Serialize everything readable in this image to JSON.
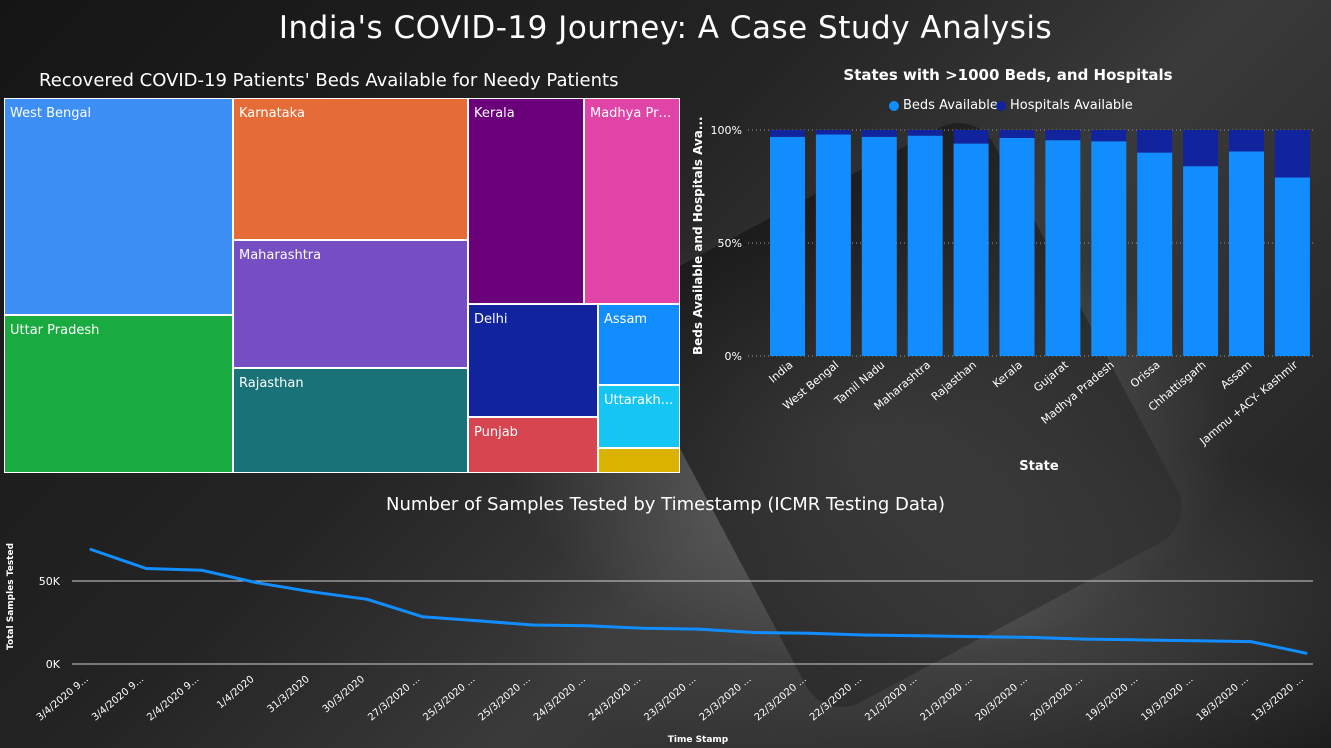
{
  "page": {
    "title": "India's COVID-19 Journey: A Case Study Analysis"
  },
  "treemap": {
    "title": "Recovered COVID-19 Patients' Beds Available for Needy Patients",
    "tiles": [
      {
        "label": "West Bengal",
        "color": "#3D8FF5"
      },
      {
        "label": "Uttar Pradesh",
        "color": "#1AAB40"
      },
      {
        "label": "Karnataka",
        "color": "#E66C37"
      },
      {
        "label": "Maharashtra",
        "color": "#744EC2"
      },
      {
        "label": "Rajasthan",
        "color": "#197278"
      },
      {
        "label": "Kerala",
        "color": "#6B007B"
      },
      {
        "label": "Madhya Pra...",
        "color": "#E044A7"
      },
      {
        "label": "Delhi",
        "color": "#12239E"
      },
      {
        "label": "Punjab",
        "color": "#D64550"
      },
      {
        "label": "Assam",
        "color": "#118DFF"
      },
      {
        "label": "Uttarakh...",
        "color": "#15C6F4"
      },
      {
        "label": "",
        "color": "#D9B300"
      }
    ]
  },
  "chart_data": [
    {
      "type": "bar",
      "stacked_percent": true,
      "title": "States with >1000 Beds, and Hospitals",
      "xlabel": "State",
      "ylabel": "Beds Available and Hospitals Ava...",
      "yticks": [
        "0%",
        "50%",
        "100%"
      ],
      "ylim": [
        0,
        100
      ],
      "legend_position": "top",
      "categories": [
        "India",
        "West Bengal",
        "Tamil Nadu",
        "Maharashtra",
        "Rajasthan",
        "Kerala",
        "Gujarat",
        "Madhya Pradesh",
        "Orissa",
        "Chhattisgarh",
        "Assam",
        "Jammu +ACY- Kashmir"
      ],
      "series": [
        {
          "name": "Beds Available",
          "color": "#118DFF",
          "values": [
            97,
            98,
            97,
            97.5,
            94,
            96.5,
            95.5,
            95,
            90,
            84,
            90.5,
            79
          ]
        },
        {
          "name": "Hospitals Available",
          "color": "#12239E",
          "values": [
            3,
            2,
            3,
            2.5,
            6,
            3.5,
            4.5,
            5,
            10,
            16,
            9.5,
            21
          ]
        }
      ]
    },
    {
      "type": "line",
      "title": "Number of Samples Tested by Timestamp (ICMR Testing Data)",
      "xlabel": "Time Stamp",
      "ylabel": "Total Samples Tested",
      "yticks": [
        "0K",
        "50K"
      ],
      "ylim": [
        0,
        80000
      ],
      "grid": true,
      "color": "#118DFF",
      "categories": [
        "3/4/2020 9...",
        "3/4/2020 9...",
        "2/4/2020 9...",
        "1/4/2020",
        "31/3/2020",
        "30/3/2020",
        "27/3/2020 ...",
        "25/3/2020 ...",
        "25/3/2020 ...",
        "24/3/2020 ...",
        "24/3/2020 ...",
        "23/3/2020 ...",
        "23/3/2020 ...",
        "22/3/2020 ...",
        "22/3/2020 ...",
        "21/3/2020 ...",
        "21/3/2020 ...",
        "20/3/2020 ...",
        "20/3/2020 ...",
        "19/3/2020 ...",
        "19/3/2020 ...",
        "18/3/2020 ...",
        "13/3/2020 ..."
      ],
      "values": [
        69000,
        57500,
        56500,
        49000,
        43500,
        39000,
        28500,
        26000,
        23500,
        23000,
        21500,
        21000,
        19000,
        18500,
        17500,
        17000,
        16500,
        16000,
        15000,
        14500,
        14000,
        13500,
        6500
      ]
    }
  ]
}
